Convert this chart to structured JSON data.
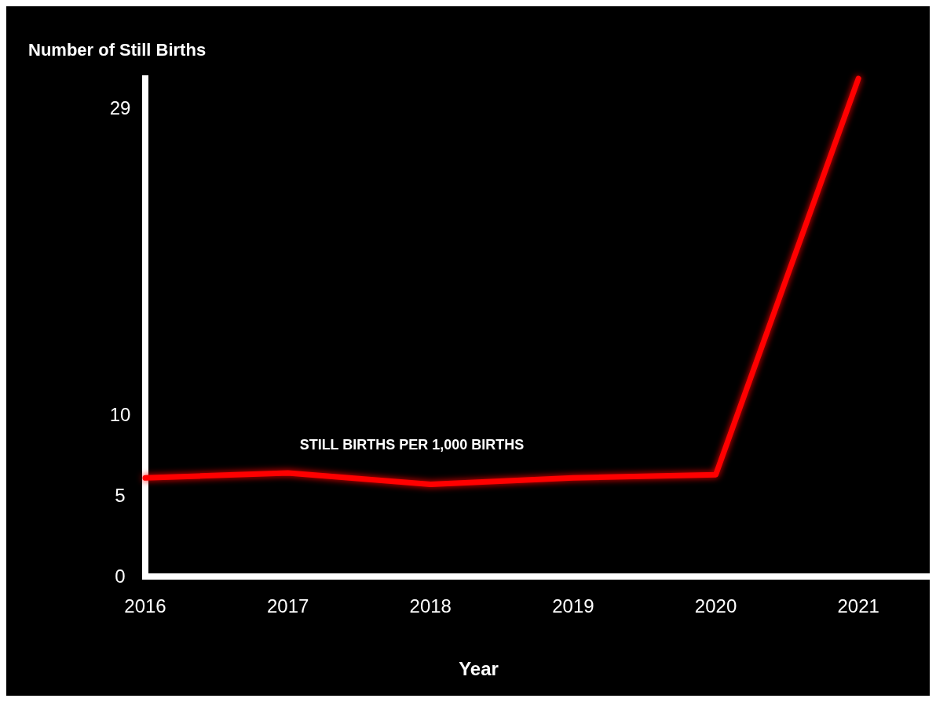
{
  "chart_data": {
    "type": "line",
    "ylabel": "Number of Still Births",
    "xlabel": "Year",
    "x": [
      2016,
      2017,
      2018,
      2019,
      2020,
      2021
    ],
    "xlim": [
      2016,
      2021.5
    ],
    "xticks": [
      2016,
      2017,
      2018,
      2019,
      2020,
      2021
    ],
    "ylim": [
      0,
      31
    ],
    "yticks": [
      0,
      5,
      10,
      29
    ],
    "grid": false,
    "legend": false,
    "marker": "none",
    "line_style": "solid",
    "series": [
      {
        "name": "STILL BIRTHS PER 1,000 BIRTHS",
        "color": "#ff0000",
        "values": [
          6.1,
          6.4,
          5.7,
          6.1,
          6.3,
          30.8
        ]
      }
    ]
  }
}
